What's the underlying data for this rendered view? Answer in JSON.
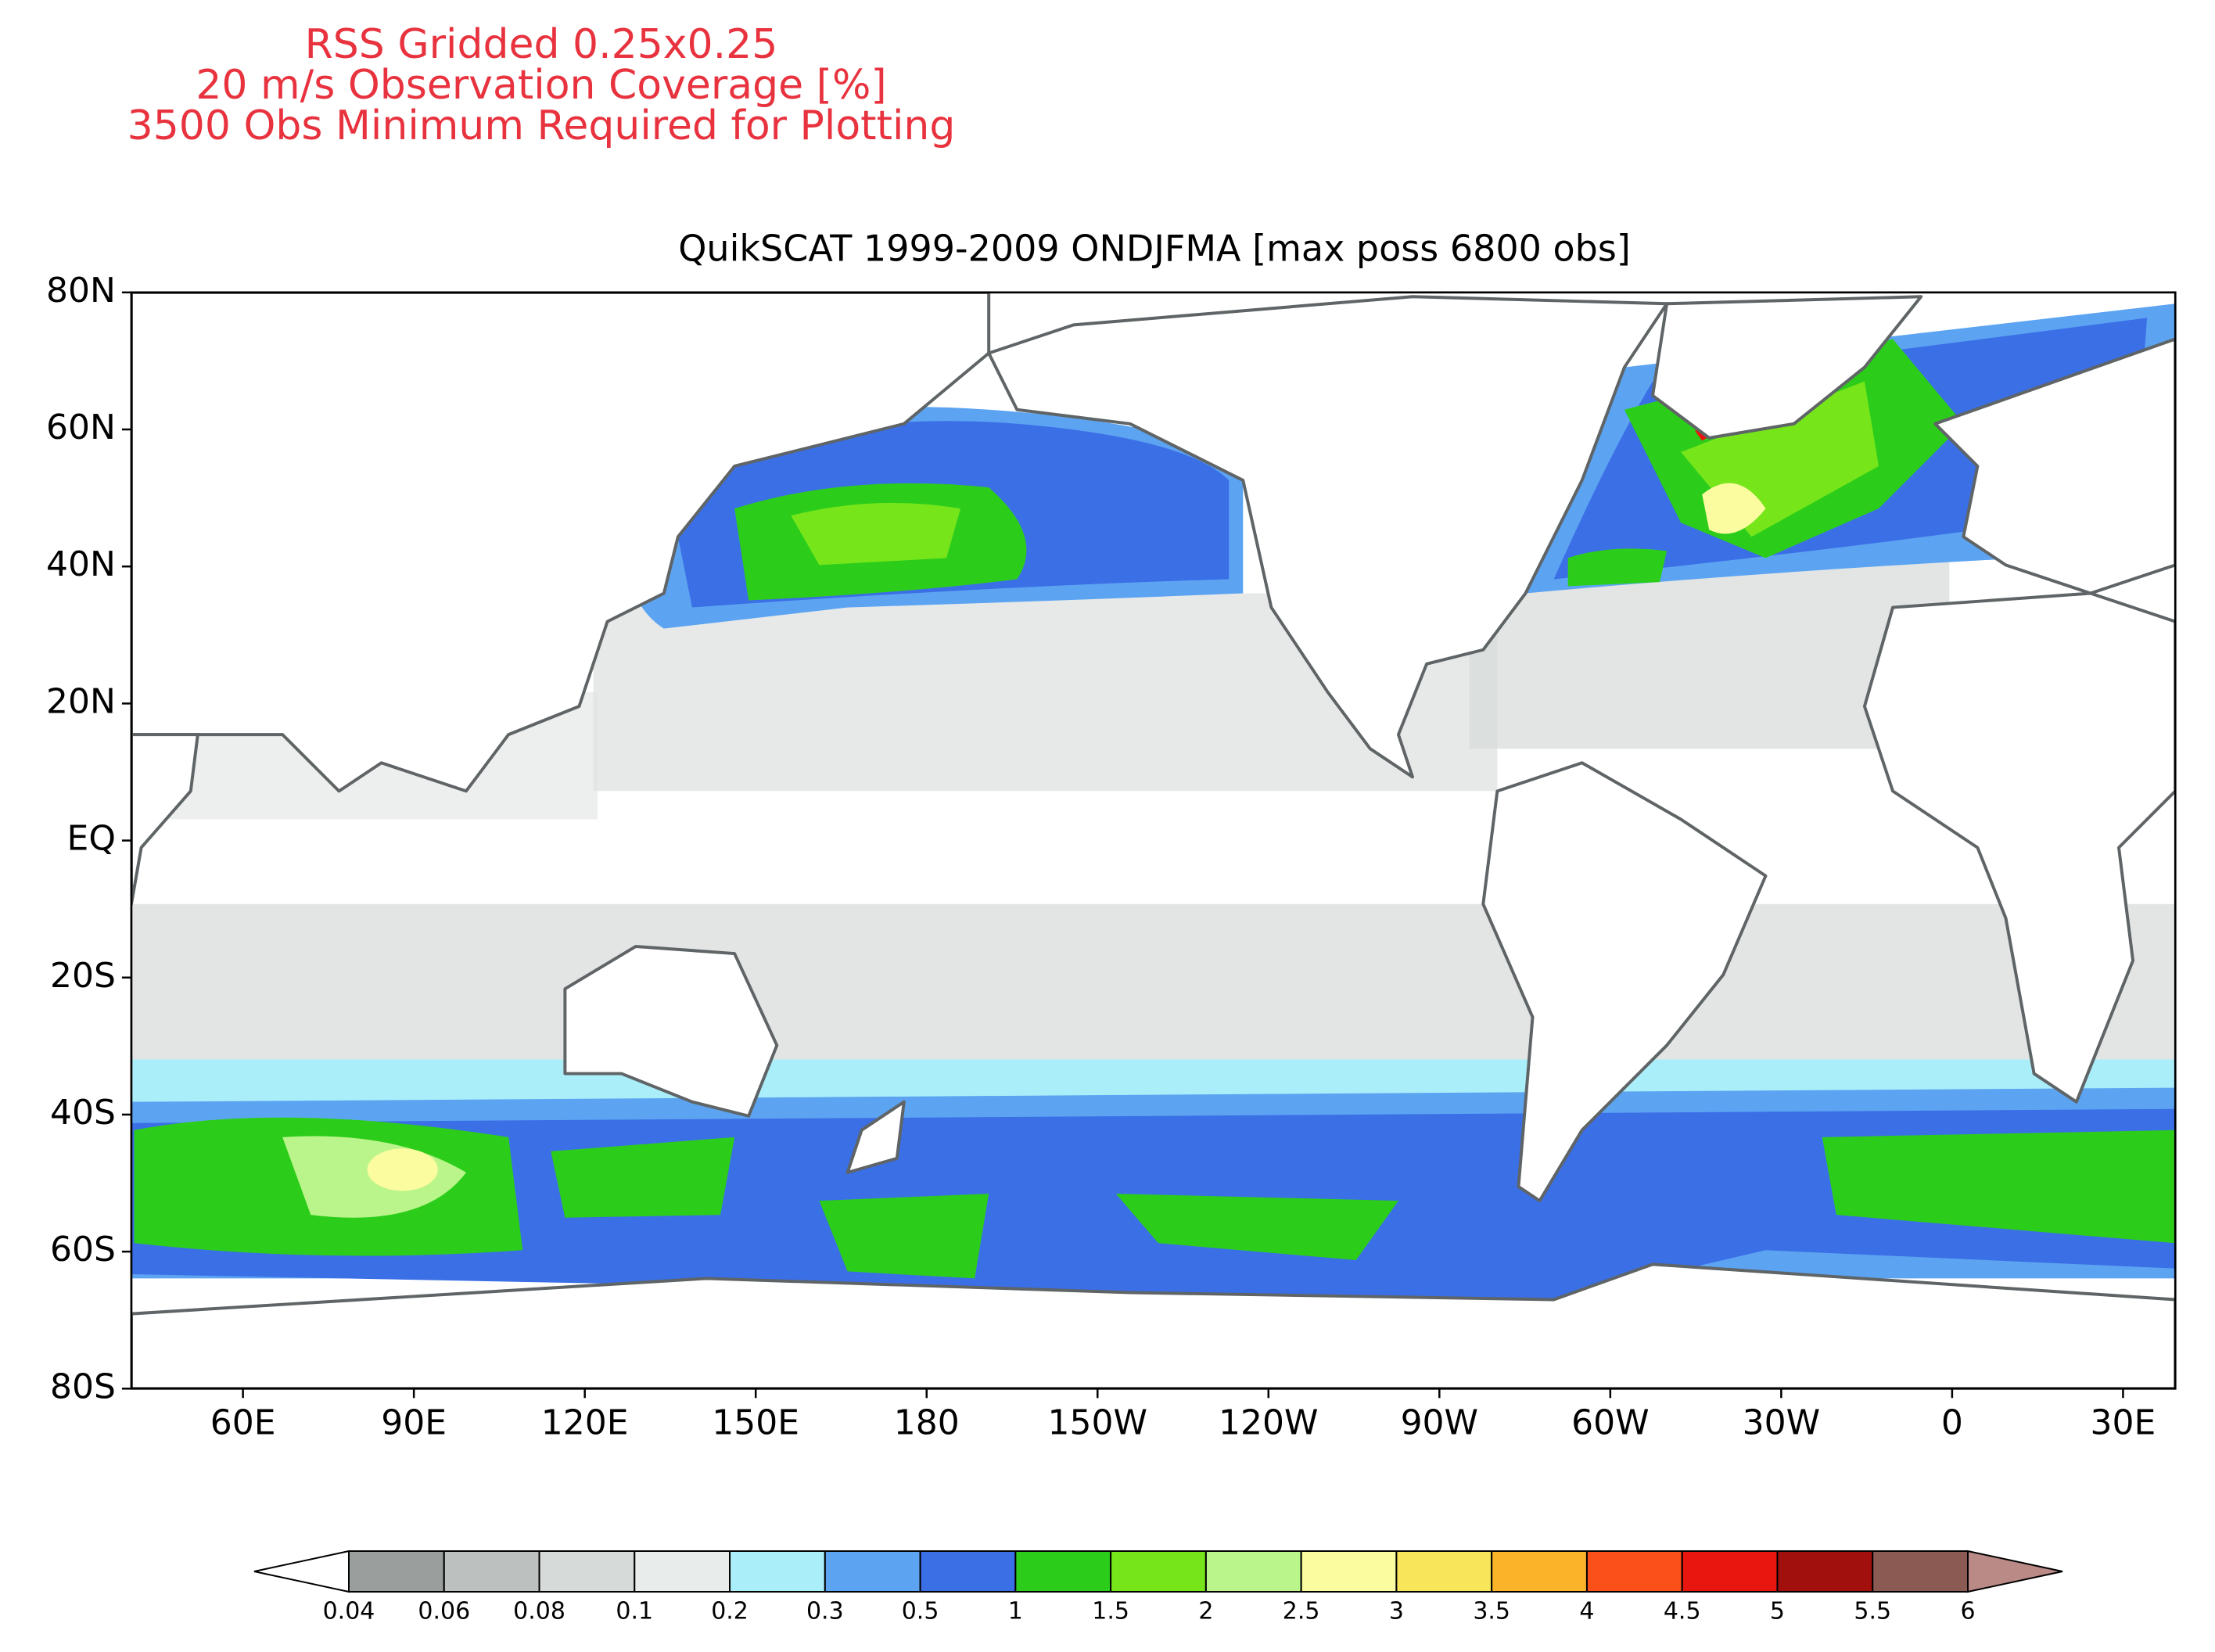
{
  "header": {
    "lines": [
      "RSS Gridded 0.25x0.25",
      "20 m/s Observation Coverage [%]",
      "3500 Obs Minimum Required for Plotting"
    ]
  },
  "map": {
    "title": "QuikSCAT 1999-2009 ONDJFMA [max poss 6800 obs]",
    "lat_ticks": [
      "80N",
      "60N",
      "40N",
      "20N",
      "EQ",
      "20S",
      "40S",
      "60S",
      "80S"
    ],
    "lon_ticks": [
      "60E",
      "90E",
      "120E",
      "150E",
      "180",
      "150W",
      "120W",
      "90W",
      "60W",
      "30W",
      "0",
      "30E"
    ]
  },
  "colorbar": {
    "levels": [
      "0.04",
      "0.06",
      "0.08",
      "0.1",
      "0.2",
      "0.3",
      "0.5",
      "1",
      "1.5",
      "2",
      "2.5",
      "3",
      "3.5",
      "4",
      "4.5",
      "5",
      "5.5",
      "6"
    ],
    "colors": [
      "#9a9e9d",
      "#bcc0bf",
      "#d6dad9",
      "#e8eceb",
      "#aaeefa",
      "#5ca4f2",
      "#3b6fe6",
      "#2ccd1a",
      "#76e61b",
      "#b9f58a",
      "#fbfb9f",
      "#f8e559",
      "#fbb32a",
      "#fc501a",
      "#e9160f",
      "#a2100d",
      "#8b5a52"
    ],
    "under_color": "#ffffff",
    "over_color": "#b98a86"
  }
}
